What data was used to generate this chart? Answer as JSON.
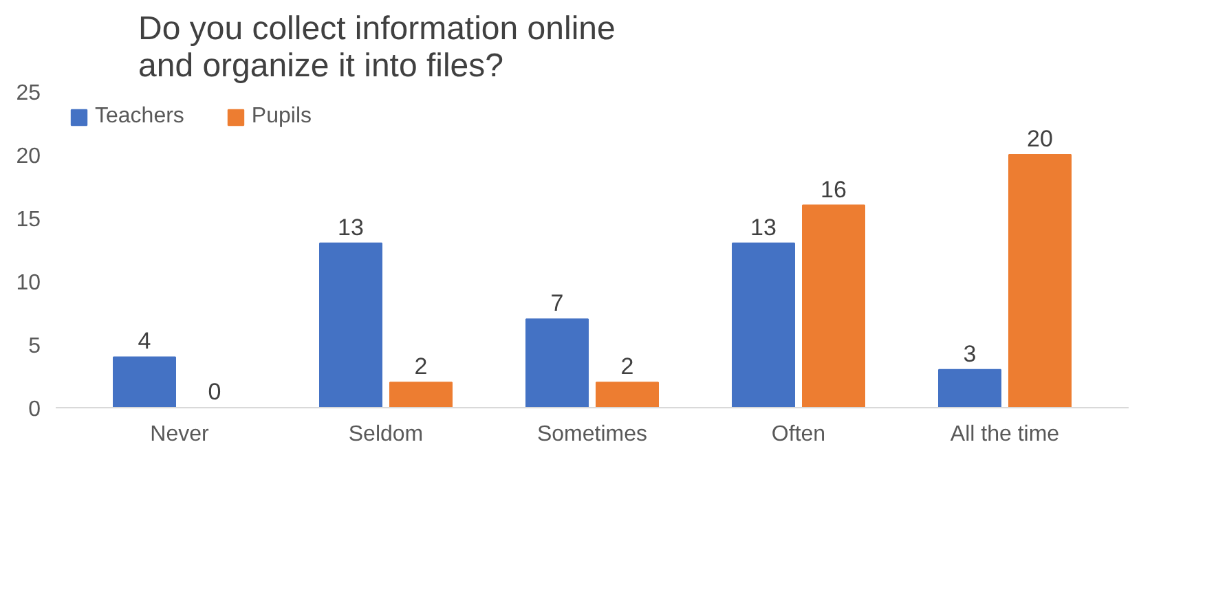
{
  "chart_data": {
    "type": "bar",
    "title": "Do you collect information online\nand organize it into files?",
    "categories": [
      "Never",
      "Seldom",
      "Sometimes",
      "Often",
      "All the time"
    ],
    "series": [
      {
        "name": "Teachers",
        "color": "#4472c4",
        "values": [
          4,
          13,
          7,
          13,
          3
        ]
      },
      {
        "name": "Pupils",
        "color": "#ed7d31",
        "values": [
          0,
          2,
          2,
          16,
          20
        ]
      }
    ],
    "ylim": [
      0,
      25
    ],
    "yticks": [
      0,
      5,
      10,
      15,
      20,
      25
    ],
    "grid": false,
    "legend": "top left",
    "data_labels": true
  }
}
